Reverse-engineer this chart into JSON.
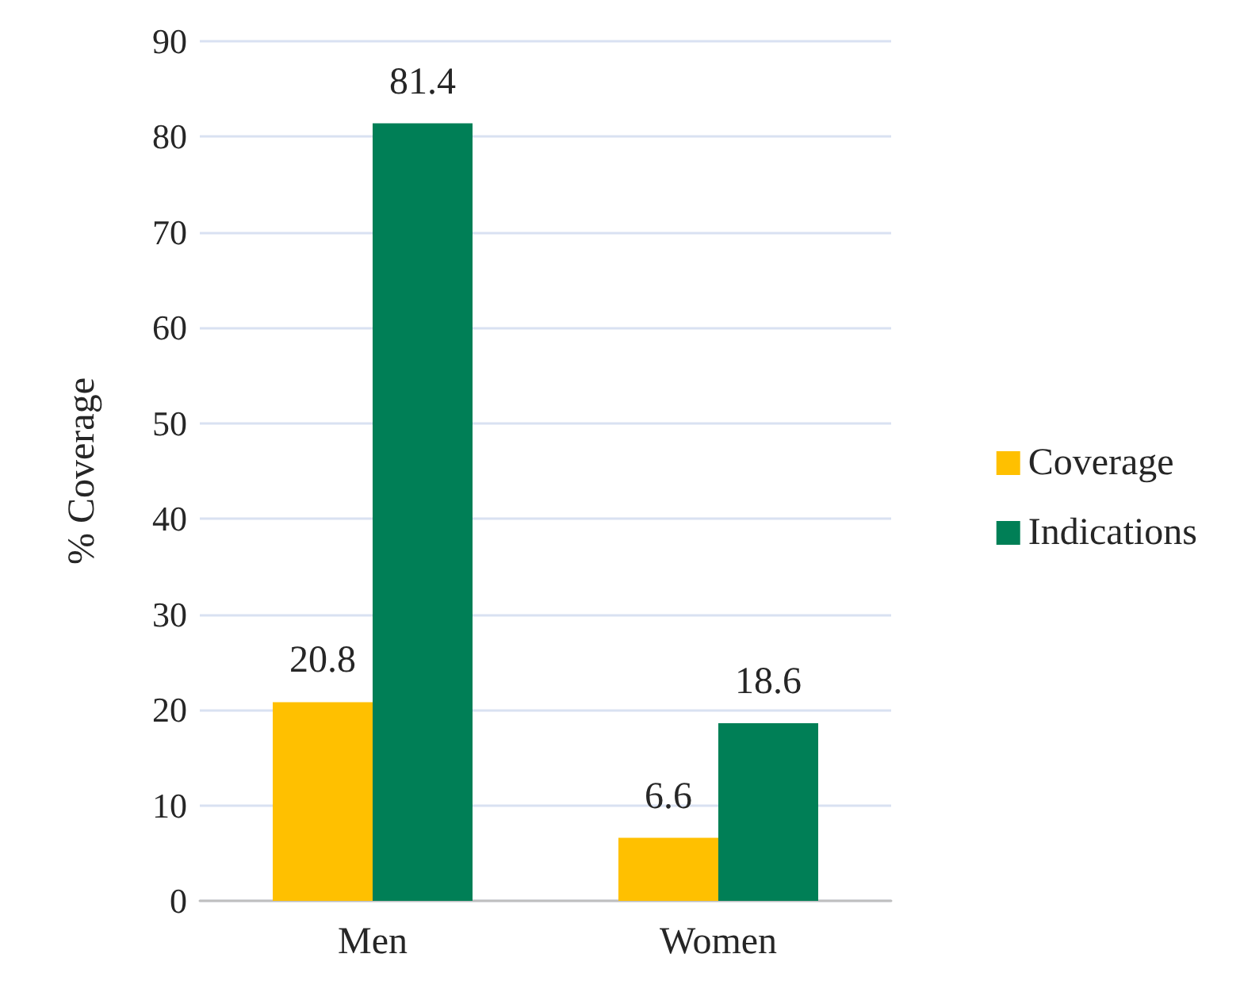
{
  "chart_data": {
    "type": "bar",
    "ylabel": "% Coverage",
    "categories": [
      "Men",
      "Women"
    ],
    "series": [
      {
        "name": "Coverage",
        "color": "#ffc000",
        "values": [
          20.8,
          6.6
        ]
      },
      {
        "name": "Indications",
        "color": "#007f56",
        "values": [
          81.4,
          18.6
        ]
      }
    ],
    "ylim": [
      0,
      90
    ],
    "yticks": [
      0,
      10,
      20,
      30,
      40,
      50,
      60,
      70,
      80,
      90
    ],
    "grid": "y",
    "legend": "right",
    "data_labels": true
  }
}
